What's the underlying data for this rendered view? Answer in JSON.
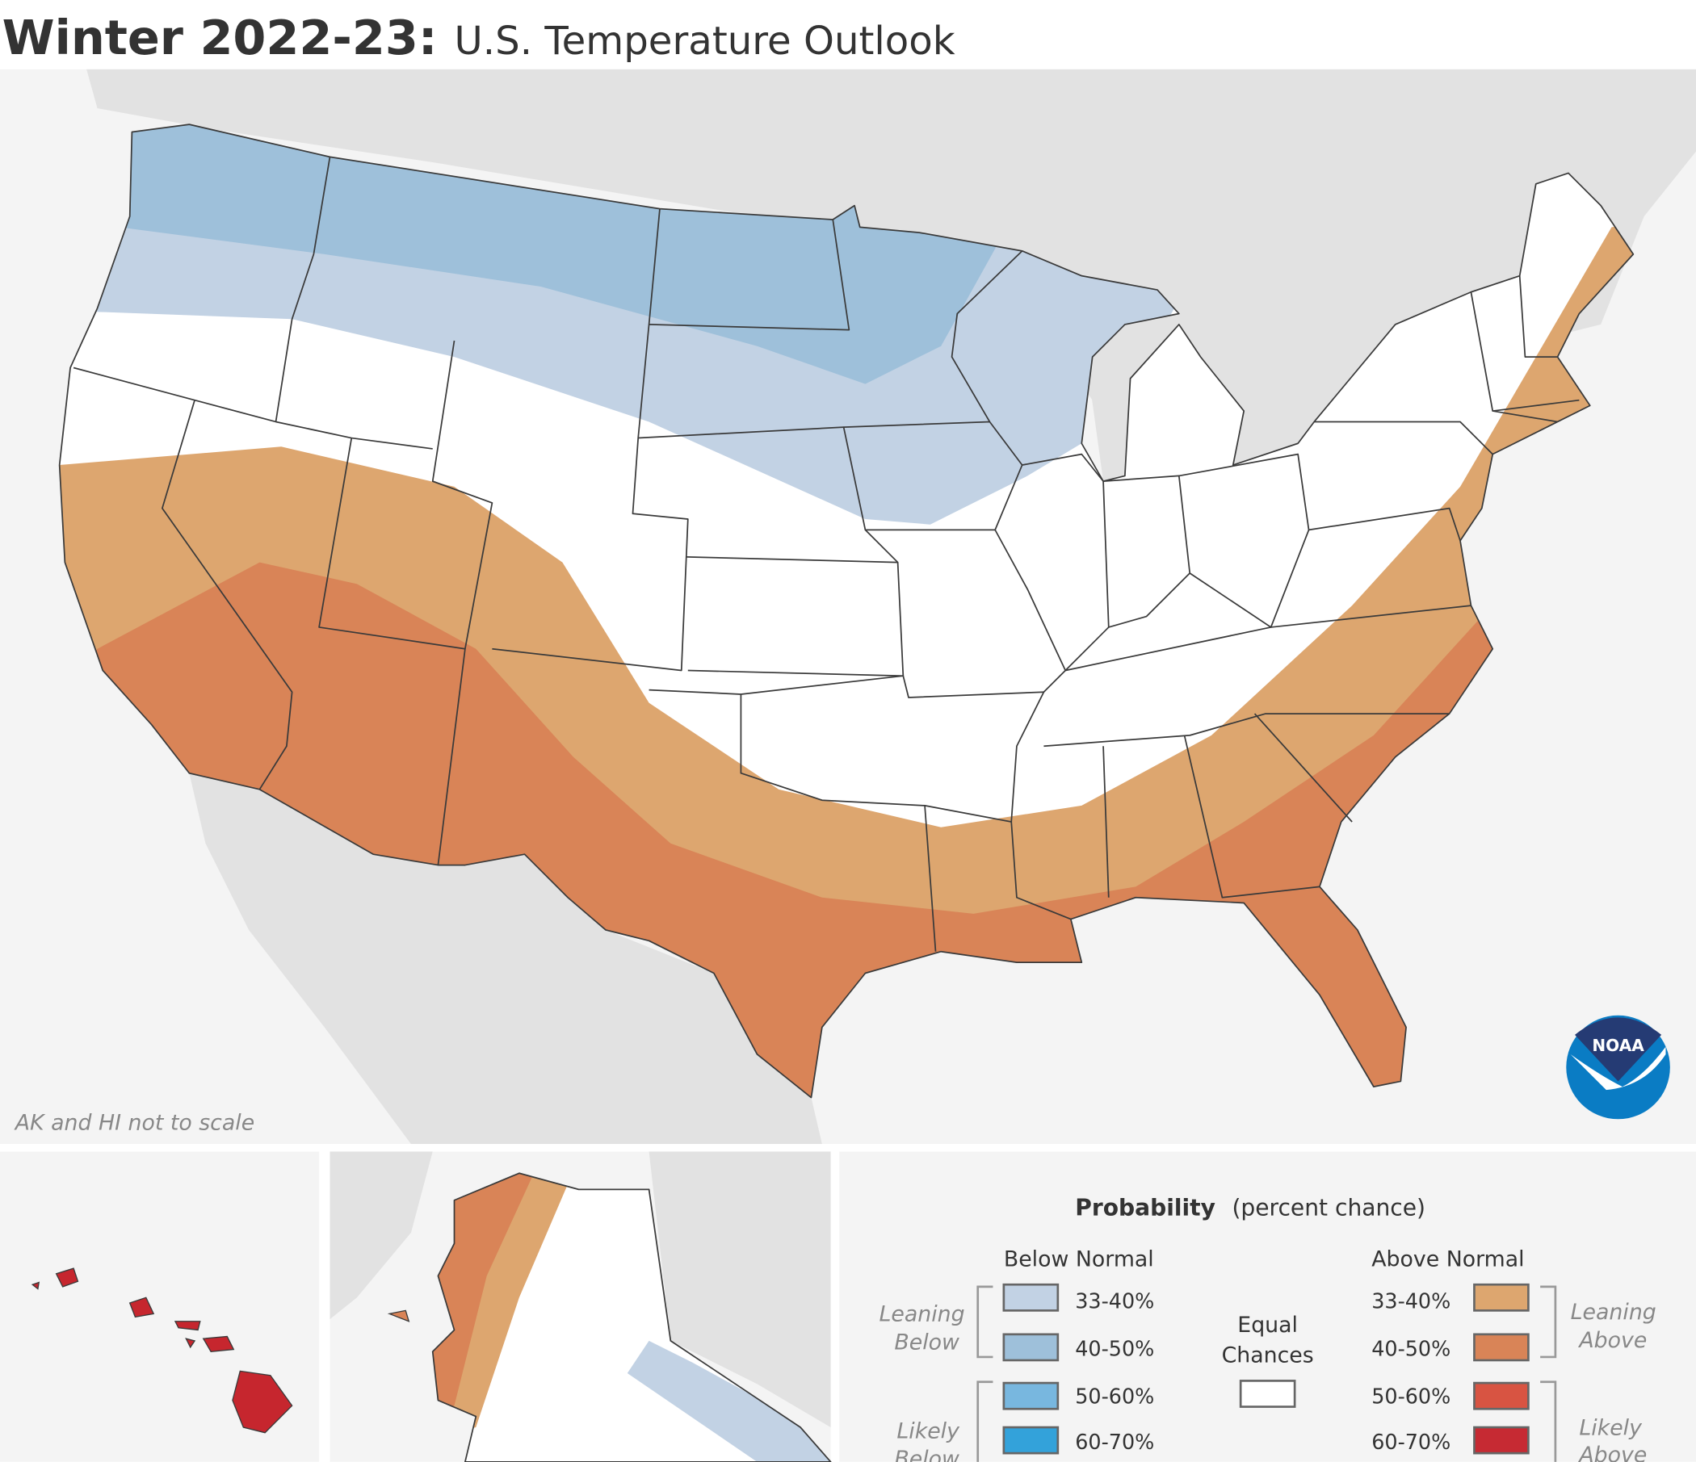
{
  "header": {
    "title_bold": "Winter 2022-23:",
    "title_rest": "U.S. Temperature Outlook"
  },
  "map": {
    "note": "AK and HI not to scale",
    "logo_text": "NOAA"
  },
  "legend": {
    "title_bold": "Probability",
    "title_rest": "(percent chance)",
    "below_heading": "Below Normal",
    "above_heading": "Above Normal",
    "equal_line1": "Equal",
    "equal_line2": "Chances",
    "leaning_below": [
      "Leaning",
      "Below"
    ],
    "likely_below": [
      "Likely",
      "Below"
    ],
    "leaning_above": [
      "Leaning",
      "Above"
    ],
    "likely_above": [
      "Likely",
      "Above"
    ],
    "below": [
      {
        "label": "33-40%",
        "color": "#c2d2e4"
      },
      {
        "label": "40-50%",
        "color": "#9ec0da"
      },
      {
        "label": "50-60%",
        "color": "#78b7df"
      },
      {
        "label": "60-70%",
        "color": "#33a2da"
      }
    ],
    "above": [
      {
        "label": "33-40%",
        "color": "#dda66f"
      },
      {
        "label": "40-50%",
        "color": "#d98457"
      },
      {
        "label": "50-60%",
        "color": "#d85442"
      },
      {
        "label": "60-70%",
        "color": "#c62a33"
      }
    ],
    "equal_color": "#ffffff"
  }
}
